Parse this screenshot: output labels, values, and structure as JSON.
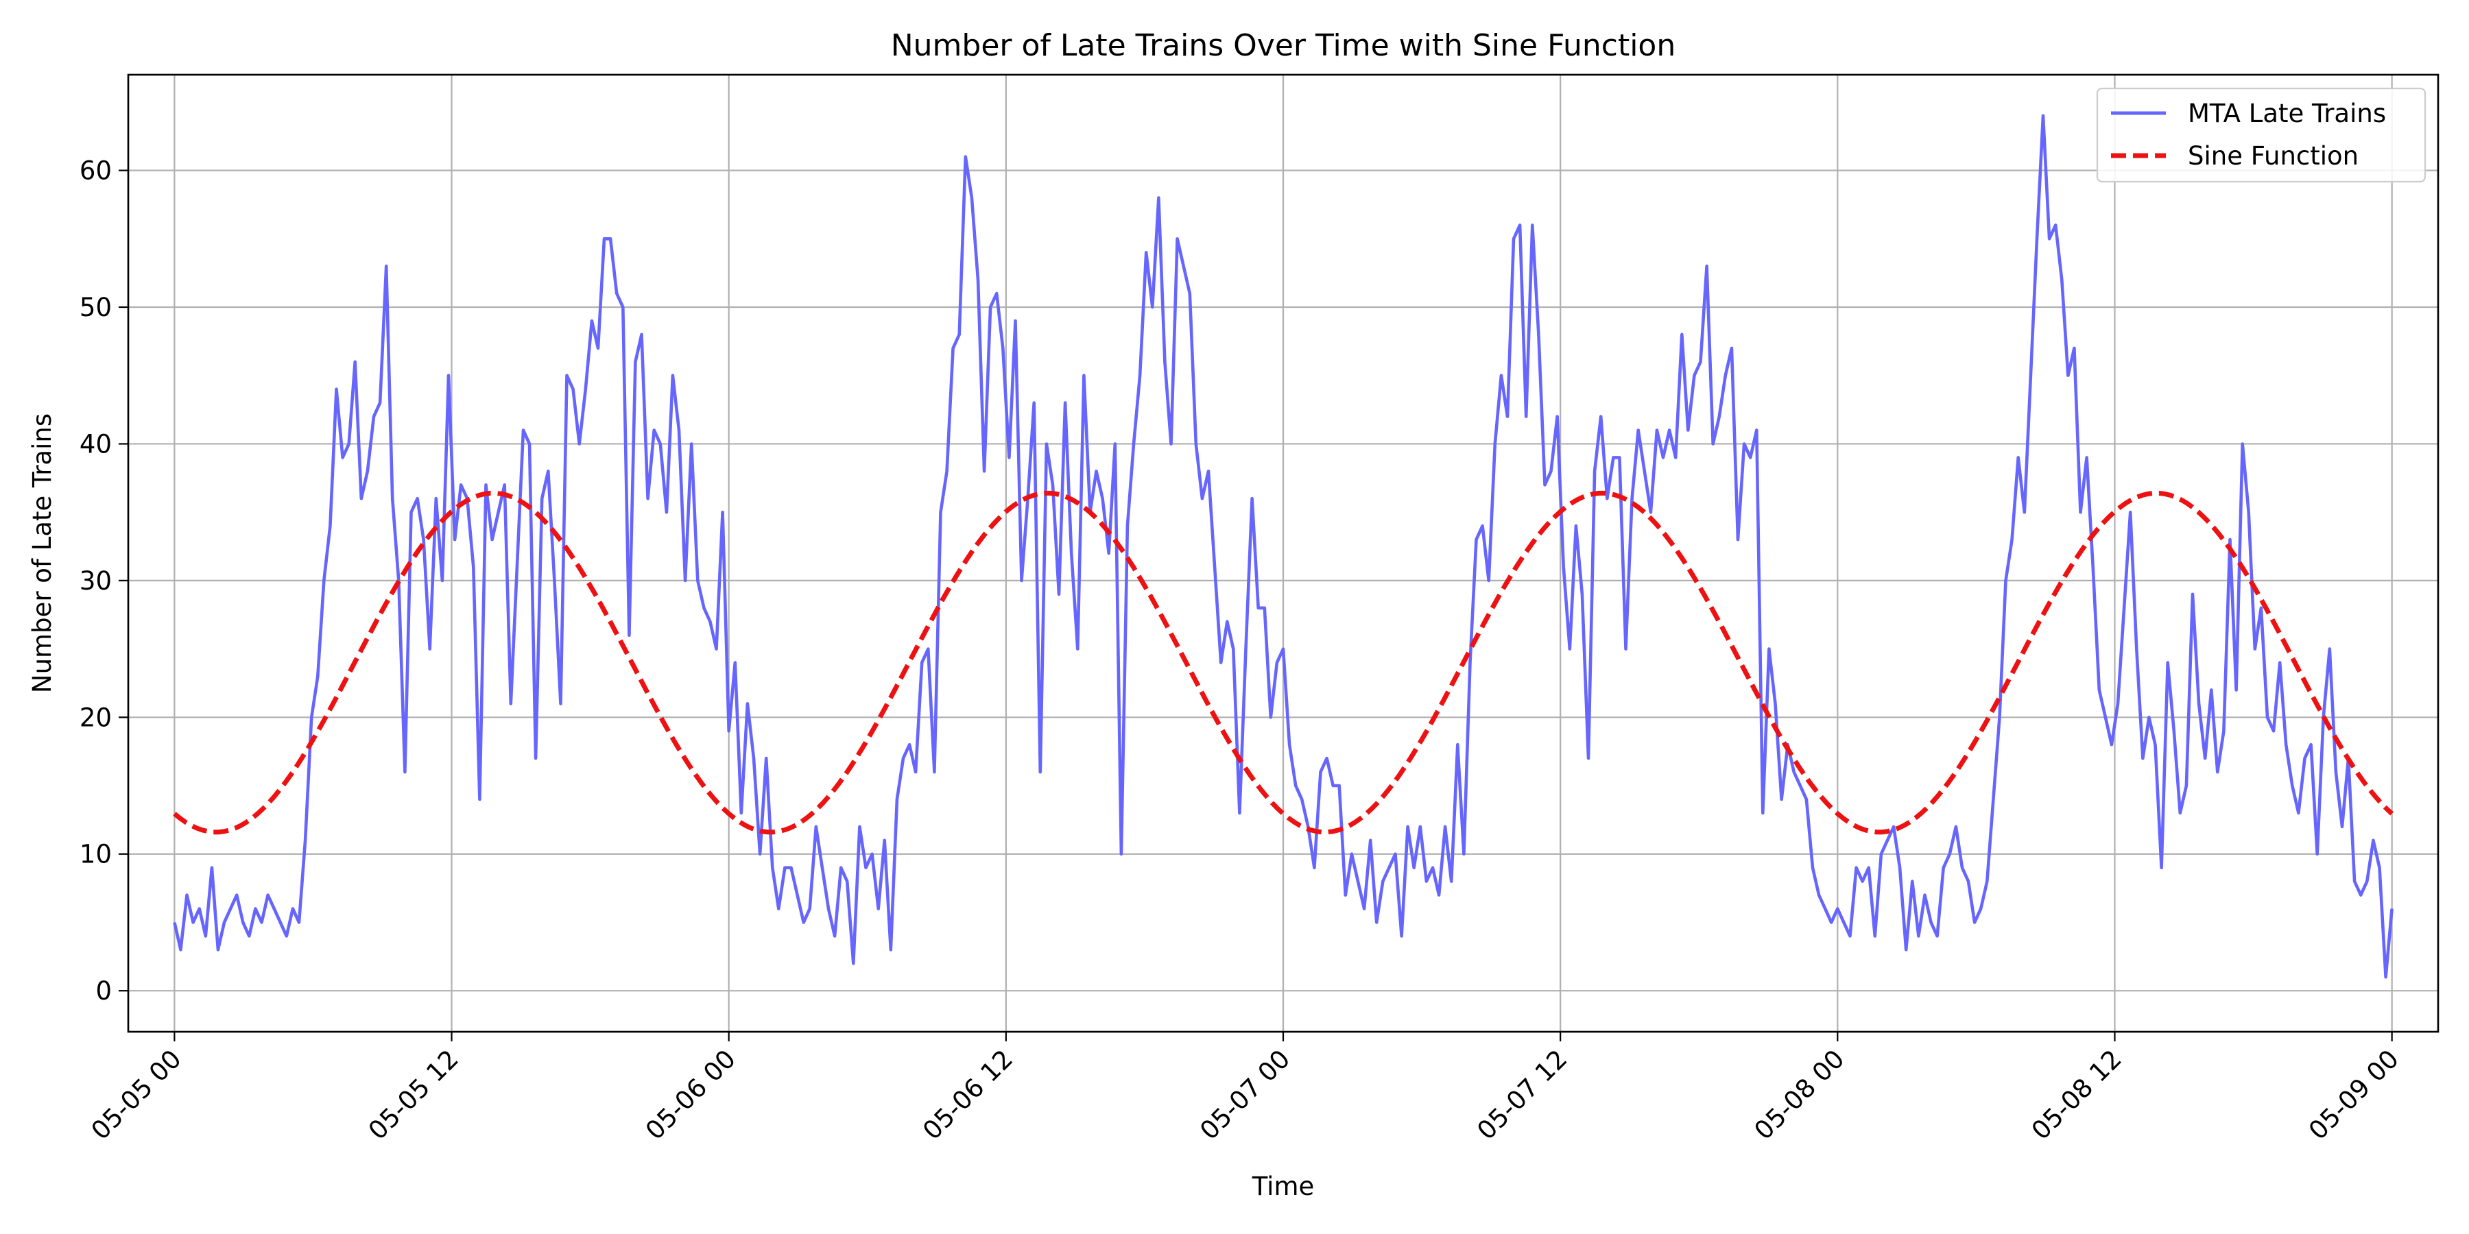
{
  "chart_data": {
    "type": "line",
    "title": "Number of Late Trains Over Time with Sine Function",
    "xlabel": "Time",
    "ylabel": "Number of Late Trains",
    "x_tick_labels": [
      "05-05 00",
      "05-05 12",
      "05-06 00",
      "05-06 12",
      "05-07 00",
      "05-07 12",
      "05-08 00",
      "05-08 12",
      "05-09 00"
    ],
    "xlim": [
      "05-04 22:00",
      "05-09 02:00"
    ],
    "y_ticks": [
      0,
      10,
      20,
      30,
      40,
      50,
      60
    ],
    "ylim": [
      -3,
      67
    ],
    "grid": true,
    "legend_position": "top-right",
    "x_sample_hours": 1,
    "series": [
      {
        "name": "MTA Late Trains",
        "color": "#6666ff",
        "style": "solid",
        "values": [
          5,
          3,
          7,
          5,
          6,
          4,
          9,
          3,
          5,
          6,
          7,
          5,
          4,
          6,
          5,
          7,
          6,
          5,
          4,
          6,
          5,
          11,
          20,
          23,
          30,
          34,
          44,
          39,
          40,
          46,
          36,
          38,
          42,
          43,
          53,
          36,
          30,
          16,
          35,
          36,
          33,
          25,
          36,
          30,
          45,
          33,
          37,
          36,
          31,
          14,
          37,
          33,
          35,
          37,
          21,
          31,
          41,
          40,
          17,
          36,
          38,
          30,
          21,
          45,
          44,
          40,
          44,
          49,
          47,
          55,
          55,
          51,
          50,
          26,
          46,
          48,
          36,
          41,
          40,
          35,
          45,
          41,
          30,
          40,
          30,
          28,
          27,
          25,
          35,
          19,
          24,
          13,
          21,
          17,
          10,
          17,
          9,
          6,
          9,
          9,
          7,
          5,
          6,
          12,
          9,
          6,
          4,
          9,
          8,
          2,
          12,
          9,
          10,
          6,
          11,
          3,
          14,
          17,
          18,
          16,
          24,
          25,
          16,
          35,
          38,
          47,
          48,
          61,
          58,
          52,
          38,
          50,
          51,
          47,
          39,
          49,
          30,
          36,
          43,
          16,
          40,
          37,
          29,
          43,
          32,
          25,
          45,
          35,
          38,
          36,
          32,
          40,
          10,
          34,
          40,
          45,
          54,
          50,
          58,
          46,
          40,
          55,
          53,
          51,
          40,
          36,
          38,
          31,
          24,
          27,
          25,
          13,
          25,
          36,
          28,
          28,
          20,
          24,
          25,
          18,
          15,
          14,
          12,
          9,
          16,
          17,
          15,
          15,
          7,
          10,
          8,
          6,
          11,
          5,
          8,
          9,
          10,
          4,
          12,
          9,
          12,
          8,
          9,
          7,
          12,
          8,
          18,
          10,
          24,
          33,
          34,
          30,
          40,
          45,
          42,
          55,
          56,
          42,
          56,
          48,
          37,
          38,
          42,
          31,
          25,
          34,
          29,
          17,
          38,
          42,
          36,
          39,
          39,
          25,
          36,
          41,
          38,
          35,
          41,
          39,
          41,
          39,
          48,
          41,
          45,
          46,
          53,
          40,
          42,
          45,
          47,
          33,
          40,
          39,
          41,
          13,
          25,
          21,
          14,
          18,
          16,
          15,
          14,
          9,
          7,
          6,
          5,
          6,
          5,
          4,
          9,
          8,
          9,
          4,
          10,
          11,
          12,
          9,
          3,
          8,
          4,
          7,
          5,
          4,
          9,
          10,
          12,
          9,
          8,
          5,
          6,
          8,
          14,
          20,
          30,
          33,
          39,
          35,
          45,
          55,
          64,
          55,
          56,
          52,
          45,
          47,
          35,
          39,
          31,
          22,
          20,
          18,
          21,
          28,
          35,
          25,
          17,
          20,
          18,
          9,
          24,
          19,
          13,
          15,
          29,
          21,
          17,
          22,
          16,
          19,
          33,
          22,
          40,
          35,
          25,
          28,
          20,
          19,
          24,
          18,
          15,
          13,
          17,
          18,
          10,
          20,
          25,
          16,
          12,
          17,
          8,
          7,
          8,
          11,
          9,
          1,
          6
        ]
      },
      {
        "name": "Sine Function",
        "color": "#ee1111",
        "style": "dashed",
        "function": "24 + 12.4 * sin(2*pi*(t_hours - 7.8)/24)"
      }
    ]
  }
}
